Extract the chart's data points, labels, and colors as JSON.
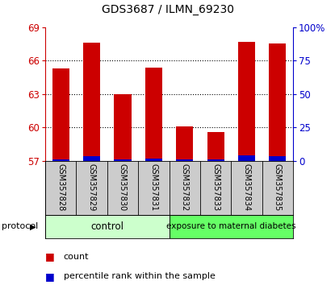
{
  "title": "GDS3687 / ILMN_69230",
  "samples": [
    "GSM357828",
    "GSM357829",
    "GSM357830",
    "GSM357831",
    "GSM357832",
    "GSM357833",
    "GSM357834",
    "GSM357835"
  ],
  "count_values": [
    65.3,
    67.6,
    63.0,
    65.4,
    60.1,
    59.6,
    67.7,
    67.5
  ],
  "percentile_values": [
    1.5,
    3.5,
    1.5,
    2.0,
    1.5,
    1.5,
    4.0,
    3.5
  ],
  "y_min": 57,
  "y_max": 69,
  "y_ticks": [
    57,
    60,
    63,
    66,
    69
  ],
  "y2_ticks": [
    0,
    25,
    50,
    75,
    100
  ],
  "y2_tick_labels": [
    "0",
    "25",
    "50",
    "75",
    "100%"
  ],
  "bar_width": 0.55,
  "count_color": "#cc0000",
  "percentile_color": "#0000cc",
  "control_color": "#ccffcc",
  "diabetes_color": "#66ff66",
  "control_samples": 4,
  "control_label": "control",
  "diabetes_label": "exposure to maternal diabetes",
  "left_axis_color": "#cc0000",
  "right_axis_color": "#0000cc",
  "background_color": "#ffffff",
  "tick_label_area_color": "#cccccc",
  "grid_yticks": [
    60,
    63,
    66
  ]
}
